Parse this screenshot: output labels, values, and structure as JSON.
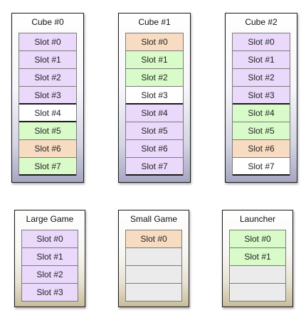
{
  "colors": {
    "purple": "#ead9fb",
    "green": "#d9fbc9",
    "orange": "#f8dcc2",
    "white": "#ffffff",
    "grey": "#ebebeb"
  },
  "cubes": [
    {
      "title": "Cube #0",
      "slots": [
        {
          "label": "Slot #0",
          "color": "purple"
        },
        {
          "label": "Slot #1",
          "color": "purple"
        },
        {
          "label": "Slot #2",
          "color": "purple"
        },
        {
          "label": "Slot #3",
          "color": "purple"
        },
        {
          "label": "Slot #4",
          "color": "white"
        },
        {
          "label": "Slot #5",
          "color": "green"
        },
        {
          "label": "Slot #6",
          "color": "orange"
        },
        {
          "label": "Slot #7",
          "color": "green"
        }
      ]
    },
    {
      "title": "Cube #1",
      "slots": [
        {
          "label": "Slot #0",
          "color": "orange"
        },
        {
          "label": "Slot #1",
          "color": "green"
        },
        {
          "label": "Slot #2",
          "color": "green"
        },
        {
          "label": "Slot #3",
          "color": "white"
        },
        {
          "label": "Slot #4",
          "color": "purple"
        },
        {
          "label": "Slot #5",
          "color": "purple"
        },
        {
          "label": "Slot #6",
          "color": "purple"
        },
        {
          "label": "Slot #7",
          "color": "purple"
        }
      ]
    },
    {
      "title": "Cube #2",
      "slots": [
        {
          "label": "Slot #0",
          "color": "purple"
        },
        {
          "label": "Slot #1",
          "color": "purple"
        },
        {
          "label": "Slot #2",
          "color": "purple"
        },
        {
          "label": "Slot #3",
          "color": "purple"
        },
        {
          "label": "Slot #4",
          "color": "green"
        },
        {
          "label": "Slot #5",
          "color": "green"
        },
        {
          "label": "Slot #6",
          "color": "orange"
        },
        {
          "label": "Slot #7",
          "color": "white"
        }
      ]
    }
  ],
  "groups": [
    {
      "title": "Large Game",
      "slots": [
        {
          "label": "Slot #0",
          "color": "purple"
        },
        {
          "label": "Slot #1",
          "color": "purple"
        },
        {
          "label": "Slot #2",
          "color": "purple"
        },
        {
          "label": "Slot #3",
          "color": "purple"
        }
      ]
    },
    {
      "title": "Small Game",
      "slots": [
        {
          "label": "Slot #0",
          "color": "orange"
        },
        {
          "label": "",
          "color": "grey"
        },
        {
          "label": "",
          "color": "grey"
        },
        {
          "label": "",
          "color": "grey"
        }
      ]
    },
    {
      "title": "Launcher",
      "slots": [
        {
          "label": "Slot #0",
          "color": "green"
        },
        {
          "label": "Slot #1",
          "color": "green"
        },
        {
          "label": "",
          "color": "grey"
        },
        {
          "label": "",
          "color": "grey"
        }
      ]
    }
  ]
}
